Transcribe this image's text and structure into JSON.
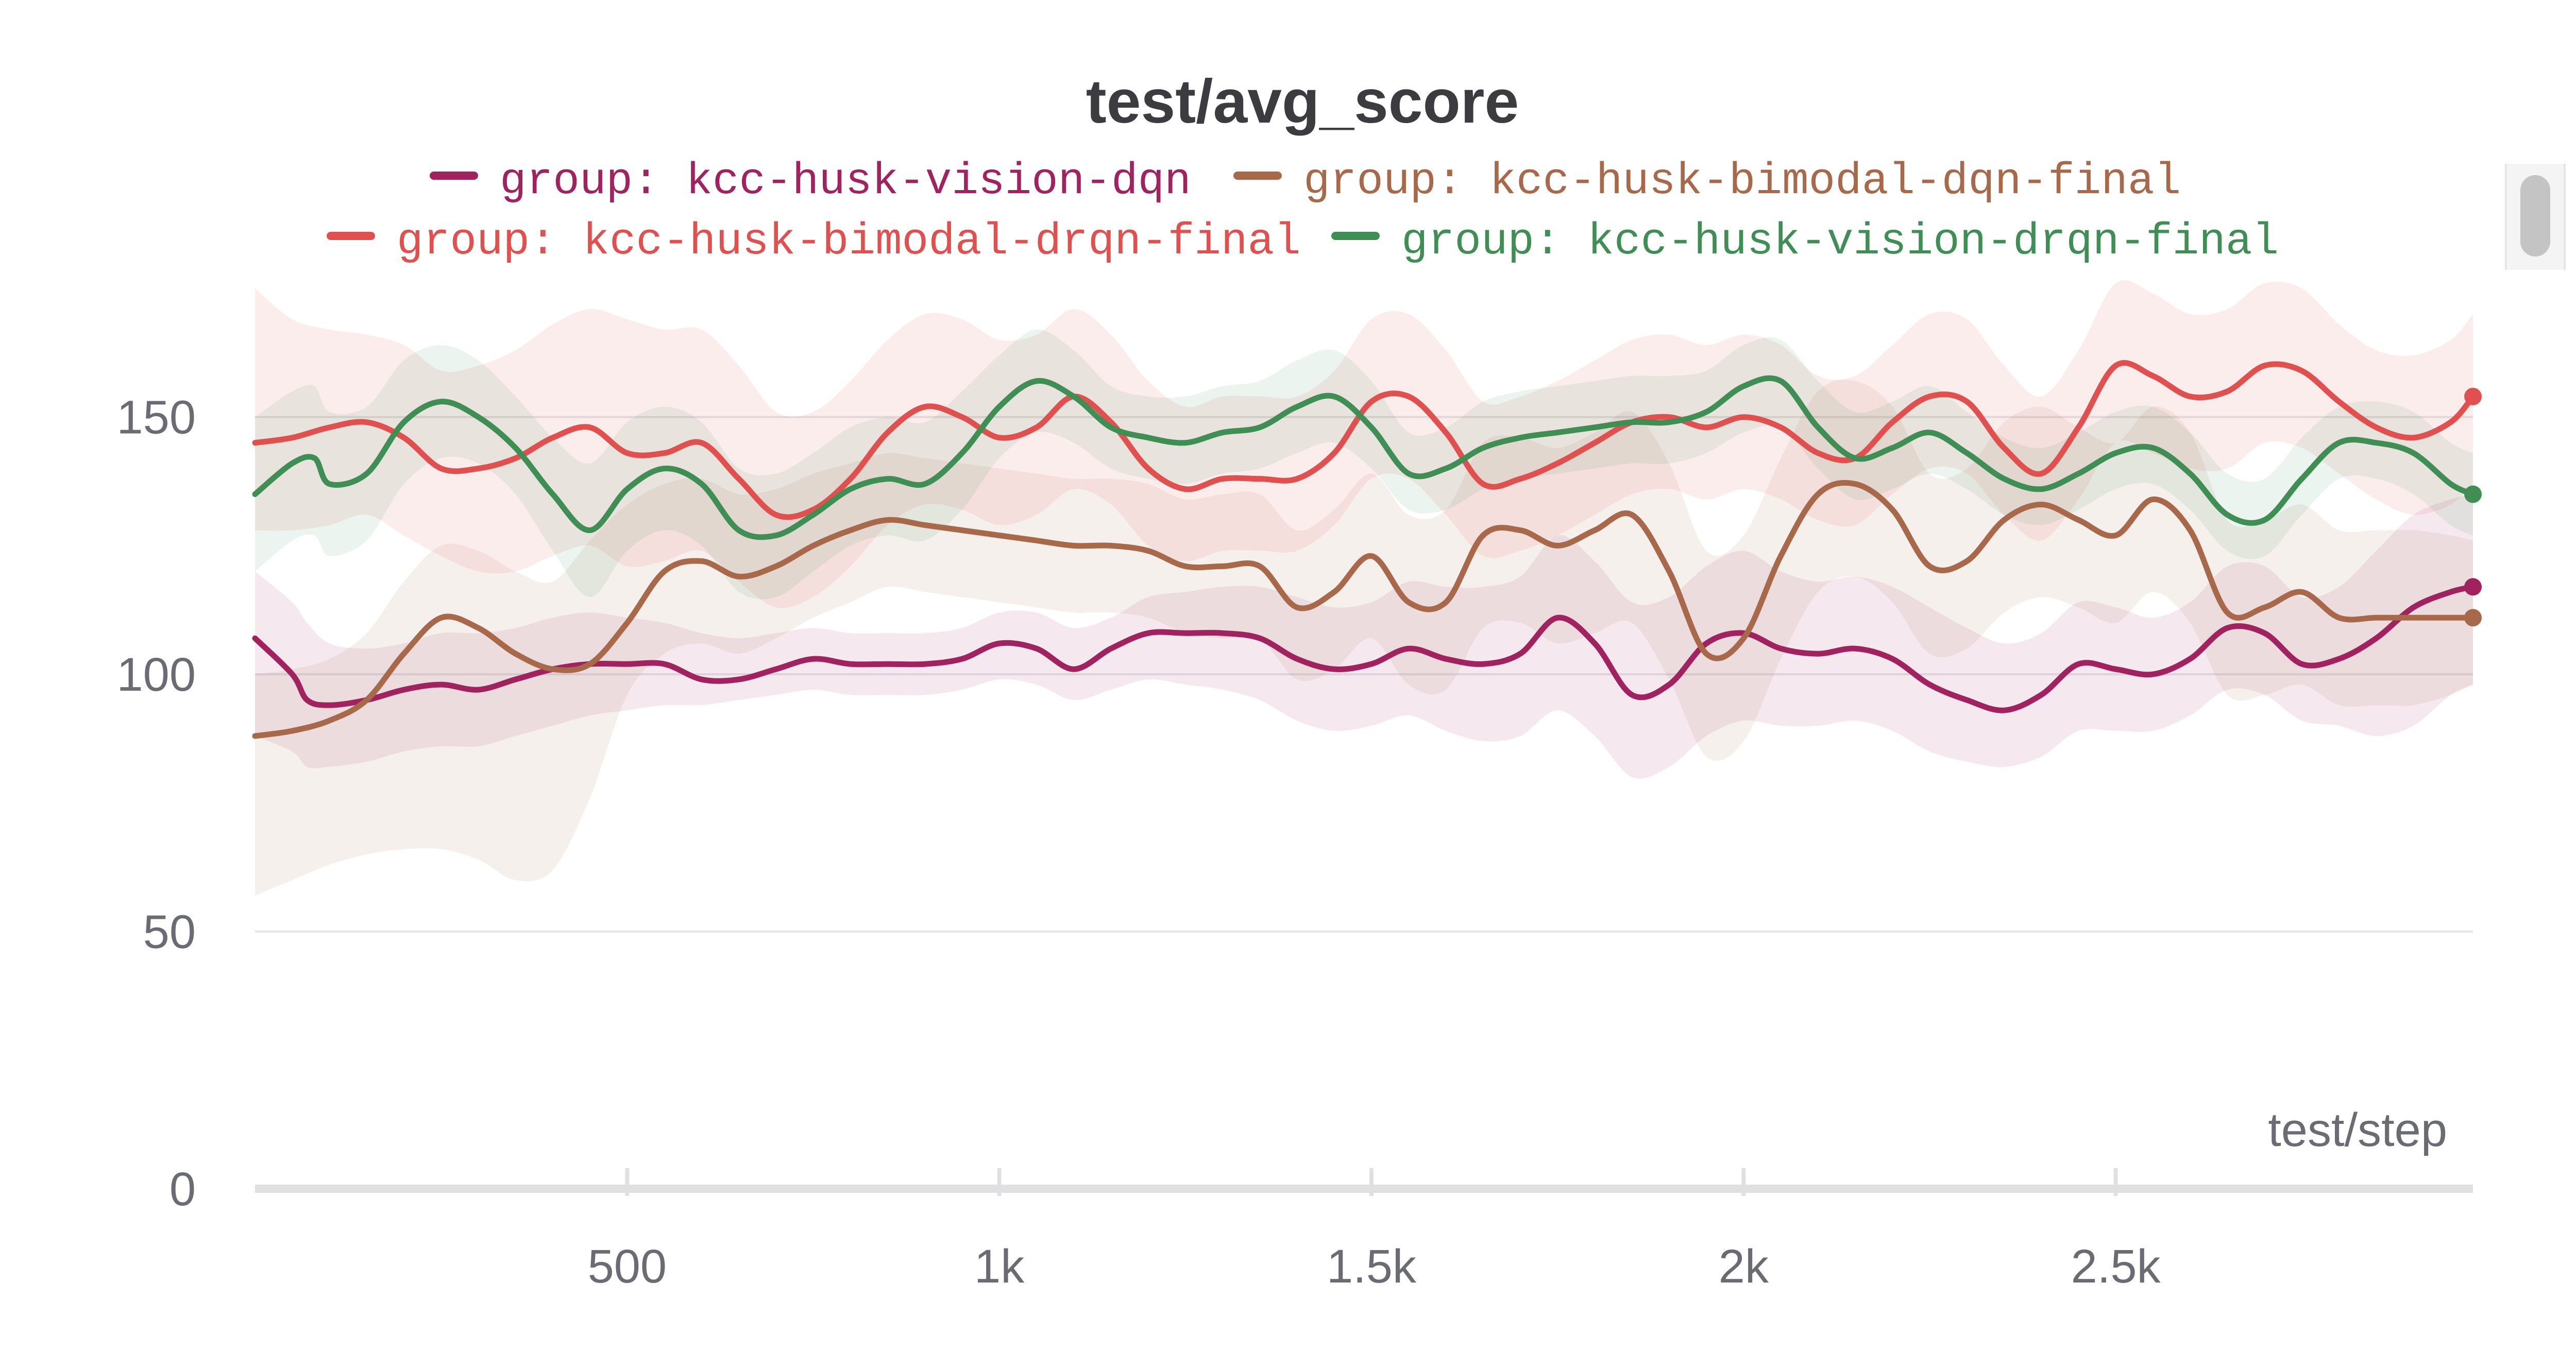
{
  "chart_data": {
    "type": "line",
    "title": "test/avg_score",
    "xlabel": "test/step",
    "ylabel": "",
    "xlim": [
      0,
      2980
    ],
    "ylim": [
      0,
      175
    ],
    "y_ticks": [
      0,
      50,
      100,
      150
    ],
    "x_ticks": [
      {
        "value": 500,
        "label": "500"
      },
      {
        "value": 1000,
        "label": "1k"
      },
      {
        "value": 1500,
        "label": "1.5k"
      },
      {
        "value": 2000,
        "label": "2k"
      },
      {
        "value": 2500,
        "label": "2.5k"
      }
    ],
    "grid": true,
    "legend_position": "top",
    "series": [
      {
        "name": "group: kcc-husk-vision-dqn",
        "color": "#a0235f",
        "x": [
          0,
          50,
          70,
          100,
          150,
          200,
          250,
          300,
          350,
          400,
          450,
          500,
          550,
          600,
          650,
          700,
          750,
          800,
          850,
          900,
          950,
          1000,
          1050,
          1100,
          1150,
          1200,
          1250,
          1300,
          1350,
          1400,
          1450,
          1500,
          1550,
          1600,
          1650,
          1700,
          1750,
          1800,
          1850,
          1900,
          1950,
          2000,
          2050,
          2100,
          2150,
          2200,
          2250,
          2300,
          2350,
          2400,
          2450,
          2500,
          2550,
          2600,
          2650,
          2700,
          2750,
          2800,
          2850,
          2900,
          2950,
          2980
        ],
        "values": [
          107,
          100,
          95,
          94,
          95,
          97,
          98,
          97,
          99,
          101,
          102,
          102,
          102,
          99,
          99,
          101,
          103,
          102,
          102,
          102,
          103,
          106,
          105,
          101,
          105,
          108,
          108,
          108,
          107,
          103,
          101,
          102,
          105,
          103,
          102,
          104,
          111,
          106,
          96,
          98,
          106,
          108,
          105,
          104,
          105,
          103,
          98,
          95,
          93,
          96,
          102,
          101,
          100,
          103,
          109,
          108,
          102,
          103,
          107,
          113,
          116,
          117
        ],
        "band_low": [
          88,
          85,
          82,
          82,
          83,
          85,
          86,
          86,
          88,
          90,
          92,
          93,
          94,
          94,
          95,
          96,
          97,
          96,
          96,
          96,
          97,
          99,
          98,
          95,
          97,
          99,
          98,
          97,
          95,
          91,
          89,
          90,
          92,
          89,
          87,
          88,
          93,
          88,
          80,
          82,
          88,
          91,
          90,
          90,
          91,
          89,
          85,
          83,
          82,
          84,
          89,
          89,
          89,
          92,
          97,
          96,
          91,
          90,
          88,
          90,
          96,
          98
        ],
        "band_high": [
          120,
          114,
          110,
          106,
          105,
          106,
          108,
          108,
          109,
          111,
          112,
          111,
          110,
          108,
          107,
          108,
          109,
          108,
          108,
          108,
          109,
          112,
          112,
          109,
          111,
          115,
          116,
          117,
          117,
          115,
          113,
          114,
          118,
          117,
          117,
          119,
          127,
          122,
          114,
          115,
          121,
          124,
          120,
          118,
          119,
          117,
          113,
          109,
          106,
          108,
          114,
          113,
          111,
          114,
          121,
          121,
          115,
          117,
          124,
          131,
          134,
          135
        ]
      },
      {
        "name": "group: kcc-husk-bimodal-dqn-final",
        "color": "#a8694a",
        "x": [
          0,
          50,
          100,
          150,
          200,
          250,
          300,
          350,
          400,
          450,
          500,
          550,
          600,
          650,
          700,
          750,
          800,
          850,
          900,
          950,
          1000,
          1050,
          1100,
          1150,
          1200,
          1250,
          1300,
          1350,
          1400,
          1450,
          1500,
          1550,
          1600,
          1650,
          1700,
          1750,
          1800,
          1850,
          1900,
          1950,
          2000,
          2050,
          2100,
          2150,
          2200,
          2250,
          2300,
          2350,
          2400,
          2450,
          2500,
          2550,
          2600,
          2650,
          2700,
          2750,
          2800,
          2850,
          2900,
          2950,
          2980
        ],
        "values": [
          88,
          89,
          91,
          95,
          104,
          111,
          109,
          104,
          101,
          102,
          110,
          120,
          122,
          119,
          121,
          125,
          128,
          130,
          129,
          128,
          127,
          126,
          125,
          125,
          124,
          121,
          121,
          121,
          113,
          116,
          123,
          114,
          114,
          127,
          128,
          125,
          128,
          131,
          120,
          104,
          107,
          123,
          135,
          137,
          132,
          121,
          122,
          130,
          133,
          130,
          127,
          134,
          128,
          112,
          113,
          116,
          111,
          111,
          111,
          111,
          111
        ],
        "band_low": [
          57,
          60,
          63,
          65,
          66,
          66,
          64,
          60,
          62,
          76,
          96,
          104,
          106,
          104,
          107,
          111,
          114,
          117,
          116,
          115,
          114,
          113,
          112,
          112,
          111,
          108,
          107,
          107,
          99,
          101,
          107,
          98,
          97,
          109,
          110,
          106,
          108,
          110,
          99,
          84,
          87,
          103,
          116,
          119,
          114,
          104,
          105,
          112,
          115,
          113,
          110,
          116,
          110,
          96,
          96,
          98,
          94,
          94,
          94,
          96,
          98
        ],
        "band_high": [
          100,
          101,
          103,
          108,
          118,
          125,
          124,
          120,
          118,
          126,
          133,
          137,
          138,
          135,
          136,
          139,
          141,
          143,
          142,
          141,
          140,
          139,
          138,
          138,
          137,
          134,
          135,
          135,
          128,
          132,
          139,
          131,
          132,
          145,
          146,
          144,
          147,
          151,
          141,
          124,
          127,
          142,
          155,
          157,
          152,
          139,
          140,
          149,
          152,
          148,
          145,
          152,
          147,
          130,
          130,
          133,
          128,
          128,
          128,
          127,
          126
        ]
      },
      {
        "name": "group: kcc-husk-bimodal-drqn-final",
        "color": "#e0504e",
        "x": [
          0,
          50,
          100,
          150,
          200,
          250,
          300,
          350,
          400,
          450,
          500,
          550,
          600,
          650,
          700,
          750,
          800,
          850,
          900,
          950,
          1000,
          1050,
          1100,
          1150,
          1200,
          1250,
          1300,
          1350,
          1400,
          1450,
          1500,
          1550,
          1600,
          1650,
          1700,
          1750,
          1800,
          1850,
          1900,
          1950,
          2000,
          2050,
          2100,
          2150,
          2200,
          2250,
          2300,
          2350,
          2400,
          2450,
          2500,
          2550,
          2600,
          2650,
          2700,
          2750,
          2800,
          2850,
          2900,
          2950,
          2980
        ],
        "values": [
          145,
          146,
          148,
          149,
          146,
          140,
          140,
          142,
          146,
          148,
          143,
          143,
          145,
          138,
          131,
          132,
          138,
          147,
          152,
          150,
          146,
          148,
          154,
          149,
          140,
          136,
          138,
          138,
          138,
          143,
          153,
          154,
          147,
          137,
          138,
          141,
          145,
          149,
          150,
          148,
          150,
          148,
          143,
          142,
          149,
          154,
          153,
          144,
          139,
          148,
          160,
          158,
          154,
          155,
          160,
          159,
          153,
          148,
          146,
          149,
          154
        ],
        "band_low": [
          128,
          128,
          129,
          131,
          127,
          123,
          120,
          120,
          123,
          125,
          121,
          122,
          124,
          118,
          113,
          115,
          121,
          129,
          133,
          132,
          129,
          131,
          136,
          133,
          125,
          122,
          124,
          124,
          124,
          129,
          138,
          138,
          131,
          123,
          124,
          127,
          131,
          135,
          136,
          134,
          136,
          134,
          130,
          129,
          135,
          140,
          139,
          131,
          126,
          134,
          145,
          143,
          140,
          140,
          145,
          144,
          139,
          134,
          131,
          133,
          137
        ],
        "band_high": [
          175,
          169,
          167,
          166,
          164,
          159,
          160,
          163,
          168,
          171,
          169,
          167,
          167,
          160,
          151,
          151,
          157,
          165,
          170,
          169,
          165,
          166,
          171,
          166,
          157,
          152,
          154,
          154,
          154,
          159,
          169,
          170,
          163,
          153,
          154,
          157,
          161,
          165,
          166,
          164,
          166,
          164,
          158,
          158,
          164,
          170,
          169,
          160,
          154,
          163,
          176,
          174,
          170,
          171,
          176,
          175,
          168,
          163,
          162,
          165,
          170
        ]
      },
      {
        "name": "group: kcc-husk-vision-drqn-final",
        "color": "#3f8f55",
        "x": [
          0,
          50,
          80,
          100,
          150,
          200,
          250,
          300,
          350,
          400,
          450,
          500,
          550,
          600,
          650,
          700,
          750,
          800,
          850,
          900,
          950,
          1000,
          1050,
          1100,
          1150,
          1200,
          1250,
          1300,
          1350,
          1400,
          1450,
          1500,
          1550,
          1600,
          1650,
          1700,
          1750,
          1800,
          1850,
          1900,
          1950,
          2000,
          2050,
          2100,
          2150,
          2200,
          2250,
          2300,
          2350,
          2400,
          2450,
          2500,
          2550,
          2600,
          2650,
          2700,
          2750,
          2800,
          2850,
          2900,
          2950,
          2980
        ],
        "values": [
          135,
          141,
          142,
          137,
          139,
          149,
          153,
          150,
          144,
          135,
          128,
          136,
          140,
          137,
          128,
          127,
          131,
          136,
          138,
          137,
          143,
          152,
          157,
          154,
          148,
          146,
          145,
          147,
          148,
          152,
          154,
          148,
          139,
          140,
          144,
          146,
          147,
          148,
          149,
          149,
          151,
          156,
          157,
          148,
          142,
          144,
          147,
          143,
          138,
          136,
          139,
          143,
          144,
          139,
          131,
          130,
          138,
          145,
          145,
          143,
          137,
          135
        ],
        "band_low": [
          120,
          126,
          127,
          123,
          126,
          137,
          142,
          141,
          135,
          124,
          115,
          124,
          128,
          125,
          116,
          115,
          120,
          125,
          127,
          126,
          132,
          142,
          147,
          145,
          140,
          138,
          137,
          139,
          140,
          143,
          145,
          140,
          132,
          132,
          136,
          138,
          139,
          140,
          141,
          141,
          143,
          147,
          148,
          140,
          134,
          136,
          139,
          136,
          131,
          129,
          132,
          136,
          137,
          132,
          124,
          123,
          131,
          138,
          138,
          135,
          129,
          127
        ],
        "band_high": [
          150,
          155,
          156,
          151,
          152,
          161,
          164,
          161,
          154,
          146,
          141,
          149,
          152,
          149,
          140,
          139,
          143,
          148,
          150,
          149,
          155,
          162,
          167,
          163,
          156,
          154,
          154,
          156,
          157,
          161,
          163,
          157,
          147,
          148,
          153,
          155,
          156,
          157,
          158,
          158,
          159,
          164,
          165,
          157,
          151,
          153,
          156,
          151,
          146,
          144,
          147,
          151,
          152,
          147,
          139,
          138,
          146,
          152,
          153,
          151,
          145,
          143
        ]
      }
    ]
  }
}
